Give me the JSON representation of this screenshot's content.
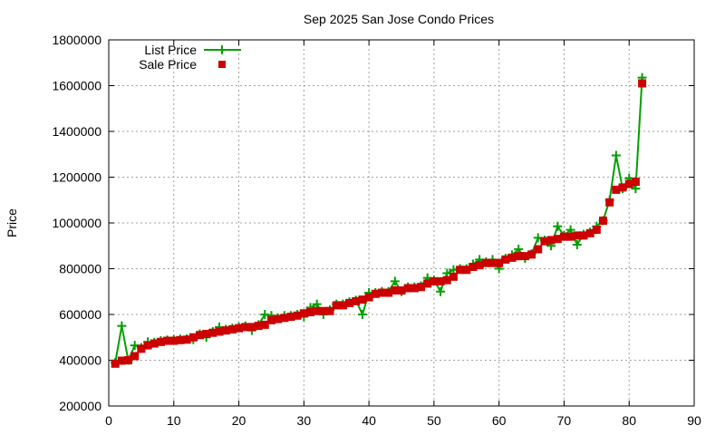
{
  "chart_data": {
    "type": "line",
    "title": "Sep 2025 San Jose Condo Prices",
    "xlabel": "",
    "ylabel": "Price",
    "xlim": [
      0,
      90
    ],
    "ylim": [
      200000,
      1800000
    ],
    "xticks": [
      0,
      10,
      20,
      30,
      40,
      50,
      60,
      70,
      80,
      90
    ],
    "yticks": [
      200000,
      400000,
      600000,
      800000,
      1000000,
      1200000,
      1400000,
      1600000,
      1800000
    ],
    "grid": true,
    "legend_position": "top-left",
    "colors": {
      "list": "#00a000",
      "sale": "#cc0000",
      "grid": "#a0a0a0"
    },
    "series": [
      {
        "name": "List Price",
        "style": "linespoints-cross",
        "values": [
          390000,
          550000,
          400000,
          465000,
          455000,
          480000,
          478000,
          485000,
          488000,
          490000,
          492000,
          493000,
          490000,
          515000,
          500000,
          525000,
          545000,
          535000,
          540000,
          545000,
          550000,
          530000,
          555000,
          600000,
          595000,
          585000,
          595000,
          595000,
          600000,
          590000,
          630000,
          645000,
          600000,
          620000,
          645000,
          645000,
          655000,
          662000,
          600000,
          695000,
          695000,
          700000,
          700000,
          745000,
          700000,
          720000,
          720000,
          725000,
          760000,
          750000,
          700000,
          780000,
          795000,
          800000,
          800000,
          820000,
          840000,
          830000,
          840000,
          800000,
          845000,
          860000,
          885000,
          845000,
          865000,
          935000,
          925000,
          900000,
          985000,
          945000,
          970000,
          905000,
          950000,
          960000,
          985000,
          1010000,
          1100000,
          1295000,
          1150000,
          1195000,
          1150000,
          1635000
        ]
      },
      {
        "name": "Sale Price",
        "style": "points-square",
        "values": [
          385000,
          398000,
          400000,
          418000,
          450000,
          465000,
          473000,
          480000,
          485000,
          485000,
          488000,
          490000,
          500000,
          510000,
          515000,
          520000,
          525000,
          530000,
          535000,
          540000,
          545000,
          545000,
          550000,
          555000,
          575000,
          580000,
          585000,
          590000,
          595000,
          605000,
          610000,
          615000,
          615000,
          615000,
          640000,
          640000,
          650000,
          658000,
          665000,
          675000,
          690000,
          695000,
          695000,
          705000,
          705000,
          715000,
          715000,
          720000,
          735000,
          745000,
          745000,
          750000,
          765000,
          795000,
          795000,
          808000,
          815000,
          825000,
          825000,
          825000,
          840000,
          848000,
          855000,
          855000,
          862000,
          885000,
          920000,
          925000,
          930000,
          940000,
          940000,
          945000,
          945000,
          955000,
          970000,
          1010000,
          1090000,
          1145000,
          1155000,
          1170000,
          1180000,
          1610000
        ]
      }
    ]
  }
}
